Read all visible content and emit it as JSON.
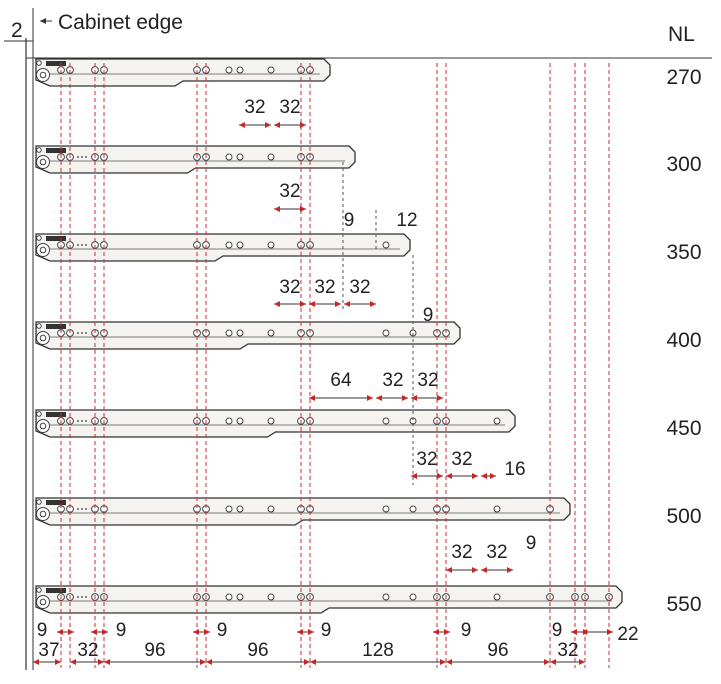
{
  "header": {
    "cabinet_edge_label": "Cabinet edge",
    "gap_label": "2",
    "nl_header": "NL"
  },
  "rails": [
    {
      "nl": "270",
      "dims": [
        "32",
        "32"
      ]
    },
    {
      "nl": "300",
      "dims": [
        "32"
      ]
    },
    {
      "nl": "350",
      "dims": [
        "32",
        "32",
        "32",
        "9",
        "12"
      ]
    },
    {
      "nl": "400",
      "dims": [
        "64",
        "32",
        "32",
        "9"
      ]
    },
    {
      "nl": "450",
      "dims": [
        "32",
        "32",
        "16"
      ]
    },
    {
      "nl": "500",
      "dims": [
        "32",
        "32",
        "9"
      ]
    },
    {
      "nl": "550",
      "dims": [
        "9",
        "9",
        "9",
        "9",
        "9",
        "9",
        "22"
      ]
    }
  ],
  "bottom_dims": [
    "37",
    "32",
    "96",
    "96",
    "128",
    "96",
    "32"
  ],
  "colors": {
    "guide": "#d12b2b",
    "line": "#333333"
  }
}
